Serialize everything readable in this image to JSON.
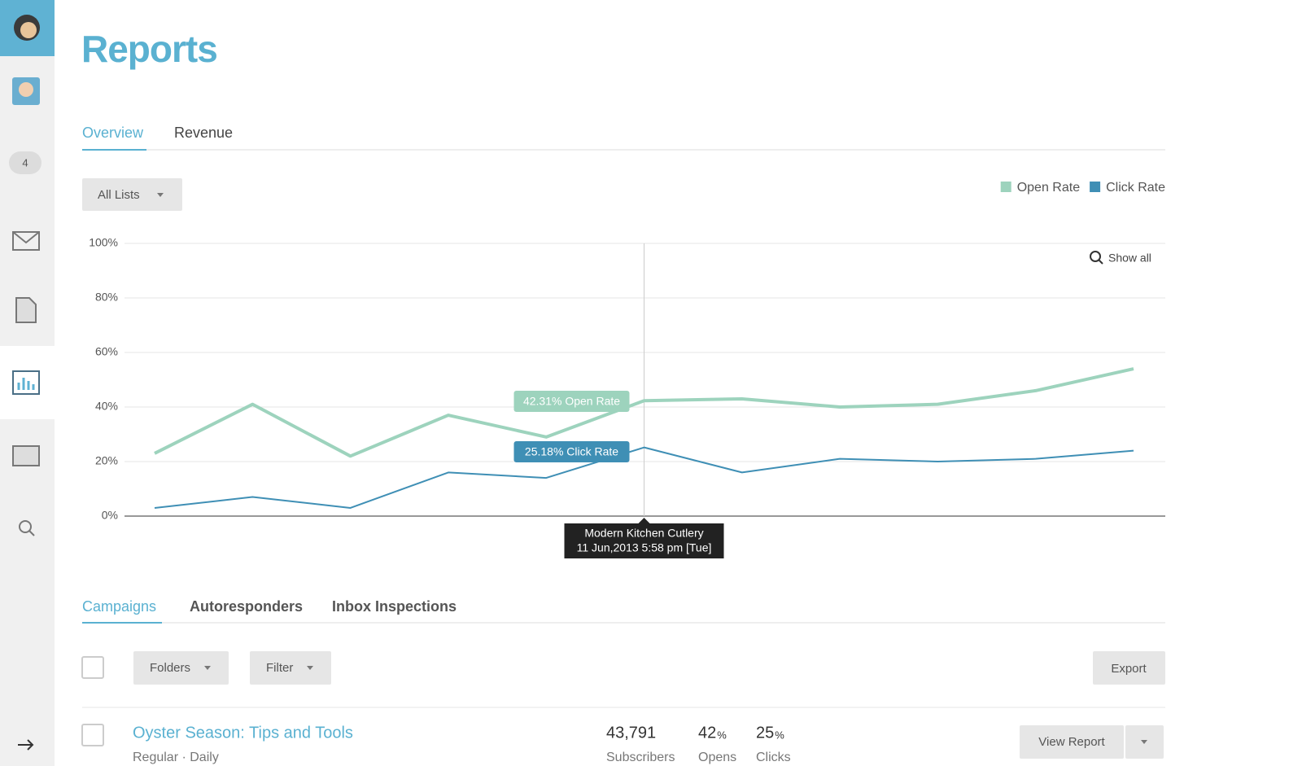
{
  "sidebar": {
    "badge": "4"
  },
  "header": {
    "title": "Reports"
  },
  "tabs": [
    "Overview",
    "Revenue"
  ],
  "list_filter": "All Lists",
  "chart_data": {
    "type": "line",
    "categories": [
      null,
      null,
      null,
      null,
      null,
      null,
      null,
      null,
      null,
      null,
      null
    ],
    "series": [
      {
        "name": "Open Rate",
        "color": "#9dd3bd",
        "values": [
          23,
          41,
          22,
          37,
          29,
          42.31,
          43,
          40,
          41,
          46,
          54
        ]
      },
      {
        "name": "Click Rate",
        "color": "#3f8fb5",
        "values": [
          3,
          7,
          3,
          16,
          14,
          25.18,
          16,
          21,
          20,
          21,
          24
        ]
      }
    ],
    "ylim": [
      0,
      100
    ],
    "yticks": [
      {
        "value": 0,
        "label": "0%"
      },
      {
        "value": 20,
        "label": "20%"
      },
      {
        "value": 40,
        "label": "40%"
      },
      {
        "value": 60,
        "label": "60%"
      },
      {
        "value": 80,
        "label": "80%"
      },
      {
        "value": 100,
        "label": "100%"
      }
    ],
    "grid": true,
    "legend": "top-right",
    "annotations": [
      "42.31% Open Rate",
      "25.18% Click Rate"
    ],
    "tooltip": {
      "title": "Modern Kitchen Cutlery",
      "date": "11 Jun,2013 5:58 pm [Tue]"
    },
    "show_all": "Show all"
  },
  "list_tabs": [
    "Campaigns",
    "Autoresponders",
    "Inbox Inspections"
  ],
  "toolbar": {
    "folders": "Folders",
    "filter": "Filter",
    "export": "Export"
  },
  "campaign": {
    "name": "Oyster Season: Tips and Tools",
    "meta": "Regular · Daily",
    "stats": [
      {
        "value": "43,791",
        "label": "Subscribers"
      },
      {
        "value": "42",
        "unit": "%",
        "label": "Opens"
      },
      {
        "value": "25",
        "unit": "%",
        "label": "Clicks"
      }
    ],
    "view_report": "View Report"
  }
}
